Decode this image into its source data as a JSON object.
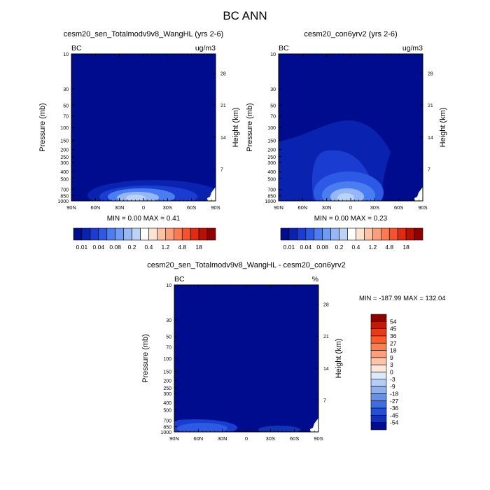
{
  "figure_title": "BC ANN",
  "colors": {
    "ocean_dark": "#000c8e",
    "ocean_mid": "#0f2fc0",
    "blue_light": "#8fb3f0",
    "white": "#ffffff",
    "red_dark": "#8e0000"
  },
  "chart_data": [
    {
      "type": "heatmap",
      "title": "cesm20_sen_Totalmodv9v8_WangHL (yrs 2-6)",
      "left_corner": "BC",
      "units": "ug/m3",
      "ylabel": "Pressure (mb)",
      "y2label": "Height (km)",
      "x_ticks": [
        "90N",
        "60N",
        "30N",
        "0",
        "30S",
        "60S",
        "90S"
      ],
      "y_ticks": [
        10,
        30,
        50,
        70,
        100,
        150,
        200,
        250,
        300,
        400,
        500,
        700,
        850,
        1000
      ],
      "y2_ticks": [
        28,
        21,
        14,
        7
      ],
      "min_max": "MIN =   0.00   MAX =    0.41",
      "colorbar": {
        "labels": [
          "0.01",
          "0.04",
          "0.08",
          "0.2",
          "0.4",
          "1.2",
          "4.8",
          "18"
        ],
        "colors": [
          "#000c8e",
          "#0a22b0",
          "#1b3cd0",
          "#2d5ae5",
          "#4a7cf2",
          "#6f9af5",
          "#95b7f7",
          "#bcd3f9",
          "#ffffff",
          "#ffe3d2",
          "#ffc2a5",
          "#ff9e78",
          "#ff7a4f",
          "#f5532e",
          "#e02a12",
          "#b81104",
          "#8e0000"
        ]
      }
    },
    {
      "type": "heatmap",
      "title": "cesm20_con6yrv2 (yrs 2-6)",
      "left_corner": "BC",
      "units": "ug/m3",
      "ylabel": "Pressure (mb)",
      "y2label": "Height (km)",
      "x_ticks": [
        "90N",
        "60N",
        "30N",
        "0",
        "30S",
        "60S",
        "90S"
      ],
      "y_ticks": [
        10,
        30,
        50,
        70,
        100,
        150,
        200,
        250,
        300,
        400,
        500,
        700,
        850,
        1000
      ],
      "y2_ticks": [
        28,
        21,
        14,
        7
      ],
      "min_max": "MIN =   0.00   MAX =    0.23",
      "colorbar": {
        "labels": [
          "0.01",
          "0.04",
          "0.08",
          "0.2",
          "0.4",
          "1.2",
          "4.8",
          "18"
        ],
        "colors": [
          "#000c8e",
          "#0a22b0",
          "#1b3cd0",
          "#2d5ae5",
          "#4a7cf2",
          "#6f9af5",
          "#95b7f7",
          "#bcd3f9",
          "#ffffff",
          "#ffe3d2",
          "#ffc2a5",
          "#ff9e78",
          "#ff7a4f",
          "#f5532e",
          "#e02a12",
          "#b81104",
          "#8e0000"
        ]
      }
    },
    {
      "type": "heatmap",
      "title": "cesm20_sen_Totalmodv9v8_WangHL - cesm20_con6yrv2",
      "left_corner": "BC",
      "units": "%",
      "ylabel": "Pressure (mb)",
      "y2label": "Height (km)",
      "x_ticks": [
        "90N",
        "60N",
        "30N",
        "0",
        "30S",
        "60S",
        "90S"
      ],
      "y_ticks": [
        10,
        30,
        50,
        70,
        100,
        150,
        200,
        250,
        300,
        400,
        500,
        700,
        850,
        1000
      ],
      "y2_ticks": [
        28,
        21,
        14,
        7
      ],
      "min_max": "MIN = -187.99  MAX = 132.04",
      "colorbar": {
        "labels": [
          "54",
          "45",
          "36",
          "27",
          "18",
          "9",
          "3",
          "0",
          "-3",
          "-9",
          "-18",
          "-27",
          "-36",
          "-45",
          "-54"
        ],
        "colors": [
          "#8e0000",
          "#c01a08",
          "#e63a18",
          "#ff5a2c",
          "#ff7f50",
          "#ff9f7e",
          "#ffc3aa",
          "#ffe6d8",
          "#dce8fb",
          "#b5cdf6",
          "#8eb0f1",
          "#6690ec",
          "#3f6ee3",
          "#2450d3",
          "#1232b5",
          "#000c8e"
        ]
      }
    }
  ]
}
